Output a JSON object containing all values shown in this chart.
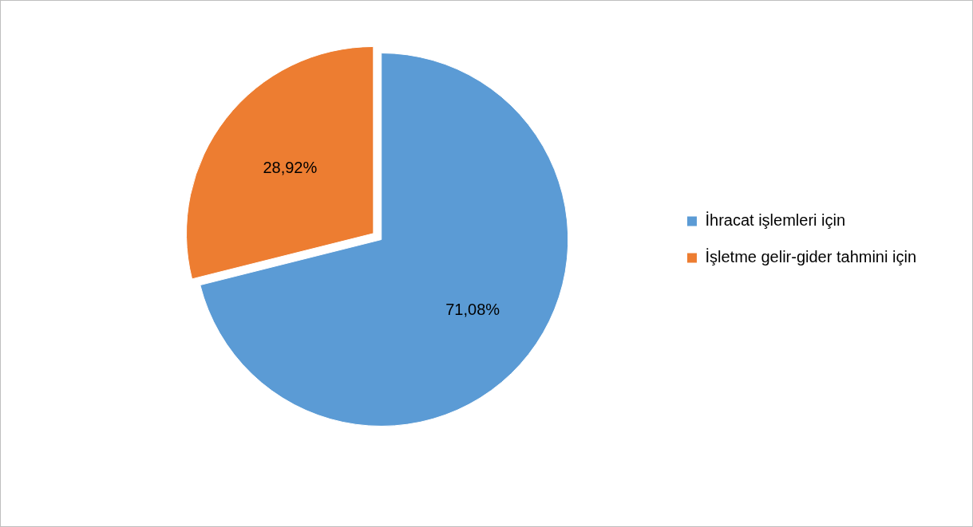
{
  "chart_data": {
    "type": "pie",
    "categories": [
      "İhracat işlemleri için",
      "İşletme gelir-gider tahmini için"
    ],
    "values": [
      71.08,
      28.92
    ],
    "colors": [
      "#5b9bd5",
      "#ed7d31"
    ],
    "value_labels": [
      "71,08%",
      "28,92%"
    ],
    "legend": "right"
  }
}
